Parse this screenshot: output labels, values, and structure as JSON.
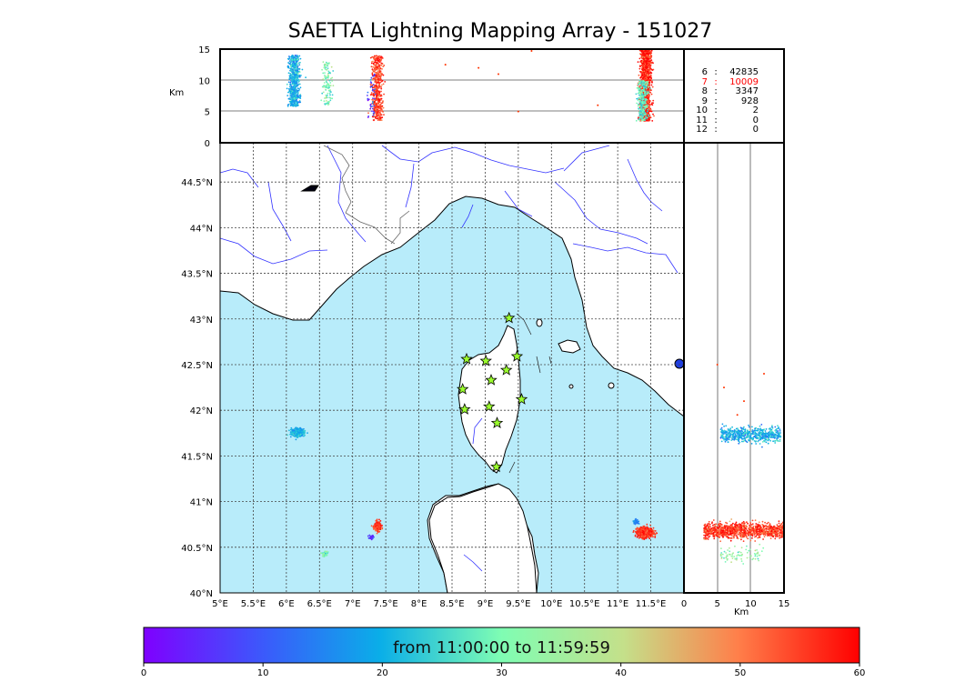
{
  "title": "SAETTA Lightning Mapping Array - 151027",
  "colors": {
    "sea": "#b8ecfa",
    "coast": "#000000",
    "river": "#3333ff",
    "grid": "#444444",
    "station_fill": "#9cff2e",
    "highlight_stat": "#ff0000"
  },
  "chart_data": [
    {
      "type": "scatter",
      "name": "plan-view",
      "xlabel": "",
      "ylabel": "",
      "xlim": [
        5,
        12
      ],
      "ylim": [
        40,
        44.93
      ],
      "grid": true,
      "x_ticks": [
        "5°E",
        "5.5°E",
        "6°E",
        "6.5°E",
        "7°E",
        "7.5°E",
        "8°E",
        "8.5°E",
        "9°E",
        "9.5°E",
        "10°E",
        "10.5°E",
        "11°E",
        "11.5°E"
      ],
      "y_ticks": [
        "40°N",
        "40.5°N",
        "41°N",
        "41.5°N",
        "42°N",
        "42.5°N",
        "43°N",
        "43.5°N",
        "44°N",
        "44.5°N"
      ],
      "stations": [
        {
          "lon": 9.36,
          "lat": 43.01
        },
        {
          "lon": 8.72,
          "lat": 42.56
        },
        {
          "lon": 9.01,
          "lat": 42.54
        },
        {
          "lon": 9.48,
          "lat": 42.59
        },
        {
          "lon": 9.32,
          "lat": 42.44
        },
        {
          "lon": 9.09,
          "lat": 42.33
        },
        {
          "lon": 8.66,
          "lat": 42.23
        },
        {
          "lon": 9.55,
          "lat": 42.12
        },
        {
          "lon": 9.06,
          "lat": 42.04
        },
        {
          "lon": 8.69,
          "lat": 42.01
        },
        {
          "lon": 9.18,
          "lat": 41.86
        },
        {
          "lon": 9.17,
          "lat": 41.38
        }
      ],
      "clusters": [
        {
          "lon": 6.17,
          "lat": 41.76,
          "spread_lon": 0.09,
          "spread_lat": 0.04,
          "time_min": 20,
          "count": 600
        },
        {
          "lon": 6.58,
          "lat": 40.43,
          "spread_lon": 0.04,
          "spread_lat": 0.03,
          "time_min": 30,
          "count": 60
        },
        {
          "lon": 7.38,
          "lat": 40.73,
          "spread_lon": 0.05,
          "spread_lat": 0.05,
          "time_min": 55,
          "count": 250
        },
        {
          "lon": 7.28,
          "lat": 40.61,
          "spread_lon": 0.03,
          "spread_lat": 0.02,
          "time_min": 5,
          "count": 40
        },
        {
          "lon": 11.42,
          "lat": 40.66,
          "spread_lon": 0.12,
          "spread_lat": 0.05,
          "time_min": 56,
          "count": 800
        },
        {
          "lon": 11.28,
          "lat": 40.78,
          "spread_lon": 0.05,
          "spread_lat": 0.03,
          "time_min": 15,
          "count": 30
        }
      ]
    },
    {
      "type": "scatter",
      "name": "altitude-vs-longitude",
      "ylabel": "Km",
      "ylim": [
        0,
        15
      ],
      "y_ticks": [
        "0",
        "5",
        "10",
        "15"
      ],
      "columns": [
        {
          "lon": 6.12,
          "alt_min": 5.8,
          "alt_max": 14,
          "time_min": 20,
          "count": 700
        },
        {
          "lon": 6.62,
          "alt_min": 6,
          "alt_max": 13,
          "time_min": 30,
          "count": 120
        },
        {
          "lon": 7.37,
          "alt_min": 3.5,
          "alt_max": 14,
          "time_min": 55,
          "count": 500
        },
        {
          "lon": 7.3,
          "alt_min": 4,
          "alt_max": 11,
          "time_min": 8,
          "count": 40
        },
        {
          "lon": 11.42,
          "alt_min": 3.5,
          "alt_max": 15,
          "time_min": 57,
          "count": 1400
        },
        {
          "lon": 11.38,
          "alt_min": 3.5,
          "alt_max": 10,
          "time_min": 28,
          "count": 300
        }
      ]
    },
    {
      "type": "scatter",
      "name": "latitude-vs-altitude",
      "xlabel": "Km",
      "xlim": [
        0,
        15
      ],
      "x_ticks": [
        "0",
        "5",
        "10",
        "15"
      ],
      "rows": [
        {
          "lat": 41.73,
          "alt_min": 5.5,
          "alt_max": 14.5,
          "time_min": 20,
          "count": 600
        },
        {
          "lat": 40.68,
          "alt_min": 3,
          "alt_max": 15,
          "time_min": 55,
          "count": 1100
        },
        {
          "lat": 40.42,
          "alt_min": 5.5,
          "alt_max": 12,
          "time_min": 33,
          "count": 80
        }
      ]
    }
  ],
  "stats": [
    {
      "n": "6",
      "sep": ":",
      "value": "42835",
      "highlight": false
    },
    {
      "n": "7",
      "sep": ":",
      "value": "10009",
      "highlight": true
    },
    {
      "n": "8",
      "sep": ":",
      "value": "3347",
      "highlight": false
    },
    {
      "n": "9",
      "sep": ":",
      "value": "928",
      "highlight": false
    },
    {
      "n": "10",
      "sep": ":",
      "value": "2",
      "highlight": false
    },
    {
      "n": "11",
      "sep": ":",
      "value": "0",
      "highlight": false
    },
    {
      "n": "12",
      "sep": ":",
      "value": "0",
      "highlight": false
    }
  ],
  "colorbar": {
    "label": "from 11:00:00 to 11:59:59",
    "ticks": [
      "0",
      "10",
      "20",
      "30",
      "40",
      "50",
      "60"
    ],
    "min": 0,
    "max": 60
  }
}
